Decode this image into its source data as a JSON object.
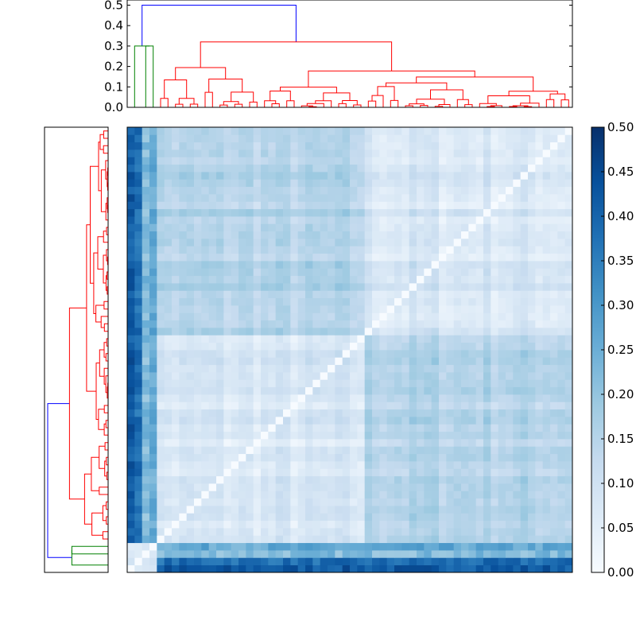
{
  "chart_data": [
    {
      "type": "heatmap",
      "title": "",
      "xlabel": "",
      "ylabel": "",
      "n_rows": 60,
      "n_cols": 60,
      "value_range": [
        0.0,
        0.5
      ],
      "colormap": "Blues",
      "diagonal_value": 0.0,
      "outlier_rows": [
        {
          "description": "row/col 1 (leftmost column, topmost-bottom row)",
          "typical_value": 0.42
        },
        {
          "description": "row/col 2",
          "typical_value": 0.38
        },
        {
          "description": "row/col 3",
          "typical_value": 0.22
        },
        {
          "description": "row/col 4",
          "typical_value": 0.26
        }
      ],
      "blocks": [
        {
          "cols": "5-32",
          "typical_value": 0.07
        },
        {
          "cols": "33-60",
          "typical_value": 0.08
        },
        {
          "cross_block_typical_value": 0.15
        }
      ]
    },
    {
      "type": "dendrogram",
      "position": "top",
      "ylim": [
        0.0,
        0.5
      ],
      "yticks": [
        "0.0",
        "0.1",
        "0.2",
        "0.3",
        "0.4",
        "0.5"
      ],
      "link_colors": [
        "#0000ff",
        "#008000",
        "#ff0000"
      ],
      "root_height": 0.5,
      "green_cluster_height": 0.3,
      "red_cluster_heights": [
        0.32,
        0.27,
        0.22,
        0.2
      ]
    },
    {
      "type": "dendrogram",
      "position": "left",
      "orientation": "right",
      "link_colors": [
        "#0000ff",
        "#008000",
        "#ff0000"
      ]
    },
    {
      "type": "colorbar",
      "range": [
        0.0,
        0.5
      ],
      "ticks": [
        "0.00",
        "0.05",
        "0.10",
        "0.15",
        "0.20",
        "0.25",
        "0.30",
        "0.35",
        "0.40",
        "0.45",
        "0.50"
      ]
    }
  ]
}
